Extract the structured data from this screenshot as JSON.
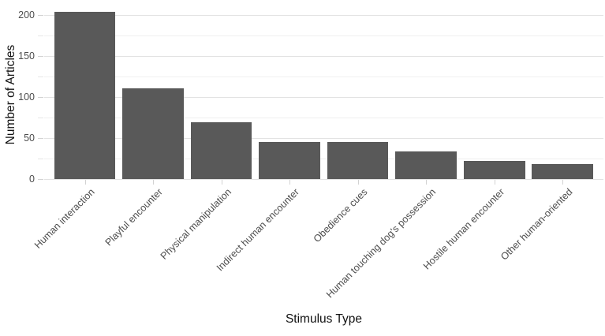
{
  "chart_data": {
    "type": "bar",
    "title": "",
    "xlabel": "Stimulus Type",
    "ylabel": "Number of Articles",
    "categories": [
      "Human interaction",
      "Playful encounter",
      "Physical manipulation",
      "Indirect human encounter",
      "Obedience cues",
      "Human touching dog's possession",
      "Hostile human encounter",
      "Other human-oriented"
    ],
    "values": [
      204,
      111,
      69,
      45,
      45,
      34,
      22,
      18
    ],
    "ylim": [
      0,
      215
    ],
    "yticks": [
      0,
      50,
      100,
      150,
      200
    ],
    "yticks_minor": [
      25,
      75,
      125,
      175
    ],
    "x_label_angle_deg": 45,
    "grid": true,
    "legend": false,
    "colors": {
      "bar_fill": "#595959",
      "grid_major": "#e2e2e2",
      "grid_minor": "#f0f0f0",
      "tick_mark": "#d2d2d2",
      "tick_label": "#4d4d4d",
      "axis_title": "#111111",
      "background": "#ffffff"
    }
  }
}
